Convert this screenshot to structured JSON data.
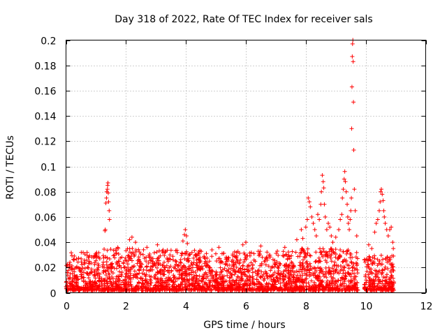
{
  "chart_data": {
    "type": "scatter",
    "title": "Day 318 of 2022, Rate Of TEC Index for receiver sals",
    "xlabel": "GPS time / hours",
    "ylabel": "ROTI / TECUs",
    "xlim": [
      0,
      12
    ],
    "ylim": [
      0,
      0.2
    ],
    "x_ticks": [
      0,
      2,
      4,
      6,
      8,
      10,
      12
    ],
    "y_ticks": [
      0,
      0.02,
      0.04,
      0.06,
      0.08,
      0.1,
      0.12,
      0.14,
      0.16,
      0.18,
      0.2
    ],
    "x_tick_labels": [
      "0",
      "2",
      "4",
      "6",
      "8",
      "10",
      "12"
    ],
    "y_tick_labels": [
      "0",
      "0.02",
      "0.04",
      "0.06",
      "0.08",
      "0.1",
      "0.12",
      "0.14",
      "0.16",
      "0.18",
      "0.2"
    ],
    "grid": true,
    "marker": "+",
    "color": "#ff0000",
    "series": [
      {
        "name": "ROTI",
        "points": [
          [
            1.3,
            0.049
          ],
          [
            1.31,
            0.05
          ],
          [
            1.33,
            0.071
          ],
          [
            1.35,
            0.075
          ],
          [
            1.36,
            0.08
          ],
          [
            1.38,
            0.082
          ],
          [
            1.39,
            0.085
          ],
          [
            1.4,
            0.087
          ],
          [
            1.41,
            0.079
          ],
          [
            1.42,
            0.072
          ],
          [
            1.44,
            0.065
          ],
          [
            1.45,
            0.058
          ],
          [
            2.12,
            0.042
          ],
          [
            2.2,
            0.044
          ],
          [
            2.32,
            0.04
          ],
          [
            2.7,
            0.036
          ],
          [
            3.05,
            0.038
          ],
          [
            3.9,
            0.041
          ],
          [
            3.95,
            0.046
          ],
          [
            3.98,
            0.05
          ],
          [
            4.02,
            0.045
          ],
          [
            4.05,
            0.039
          ],
          [
            5.1,
            0.036
          ],
          [
            5.9,
            0.038
          ],
          [
            6.0,
            0.04
          ],
          [
            6.5,
            0.037
          ],
          [
            7.3,
            0.036
          ],
          [
            7.7,
            0.042
          ],
          [
            7.85,
            0.05
          ],
          [
            7.9,
            0.043
          ],
          [
            8.0,
            0.052
          ],
          [
            8.05,
            0.058
          ],
          [
            8.08,
            0.075
          ],
          [
            8.12,
            0.072
          ],
          [
            8.15,
            0.068
          ],
          [
            8.2,
            0.06
          ],
          [
            8.25,
            0.055
          ],
          [
            8.3,
            0.05
          ],
          [
            8.35,
            0.045
          ],
          [
            8.4,
            0.062
          ],
          [
            8.45,
            0.058
          ],
          [
            8.5,
            0.07
          ],
          [
            8.52,
            0.08
          ],
          [
            8.55,
            0.093
          ],
          [
            8.58,
            0.088
          ],
          [
            8.6,
            0.083
          ],
          [
            8.62,
            0.07
          ],
          [
            8.65,
            0.06
          ],
          [
            8.7,
            0.05
          ],
          [
            8.75,
            0.055
          ],
          [
            8.8,
            0.052
          ],
          [
            8.85,
            0.045
          ],
          [
            8.9,
            0.04
          ],
          [
            9.0,
            0.044
          ],
          [
            9.1,
            0.05
          ],
          [
            9.15,
            0.058
          ],
          [
            9.2,
            0.062
          ],
          [
            9.22,
            0.075
          ],
          [
            9.25,
            0.082
          ],
          [
            9.28,
            0.09
          ],
          [
            9.3,
            0.096
          ],
          [
            9.32,
            0.088
          ],
          [
            9.35,
            0.08
          ],
          [
            9.38,
            0.07
          ],
          [
            9.4,
            0.06
          ],
          [
            9.42,
            0.055
          ],
          [
            9.45,
            0.05
          ],
          [
            9.48,
            0.058
          ],
          [
            9.5,
            0.065
          ],
          [
            9.52,
            0.075
          ],
          [
            9.53,
            0.13
          ],
          [
            9.54,
            0.163
          ],
          [
            9.55,
            0.187
          ],
          [
            9.56,
            0.197
          ],
          [
            9.57,
            0.2
          ],
          [
            9.58,
            0.183
          ],
          [
            9.59,
            0.151
          ],
          [
            9.6,
            0.113
          ],
          [
            9.62,
            0.082
          ],
          [
            9.65,
            0.065
          ],
          [
            9.7,
            0.045
          ],
          [
            10.1,
            0.038
          ],
          [
            10.2,
            0.035
          ],
          [
            10.3,
            0.048
          ],
          [
            10.35,
            0.055
          ],
          [
            10.4,
            0.058
          ],
          [
            10.45,
            0.065
          ],
          [
            10.48,
            0.072
          ],
          [
            10.5,
            0.08
          ],
          [
            10.52,
            0.082
          ],
          [
            10.55,
            0.078
          ],
          [
            10.58,
            0.073
          ],
          [
            10.6,
            0.065
          ],
          [
            10.62,
            0.06
          ],
          [
            10.65,
            0.055
          ],
          [
            10.7,
            0.05
          ],
          [
            10.75,
            0.045
          ],
          [
            10.8,
            0.05
          ],
          [
            10.85,
            0.052
          ],
          [
            10.9,
            0.04
          ],
          [
            10.92,
            0.035
          ]
        ],
        "dense_band": {
          "segments": [
            {
              "x_start": 0.0,
              "x_end": 1.25,
              "y_min": 0.002,
              "y_max": 0.032
            },
            {
              "x_start": 1.25,
              "x_end": 2.9,
              "y_min": 0.002,
              "y_max": 0.036
            },
            {
              "x_start": 2.9,
              "x_end": 5.0,
              "y_min": 0.002,
              "y_max": 0.034
            },
            {
              "x_start": 5.0,
              "x_end": 7.8,
              "y_min": 0.002,
              "y_max": 0.033
            },
            {
              "x_start": 7.8,
              "x_end": 9.75,
              "y_min": 0.002,
              "y_max": 0.035
            },
            {
              "x_start": 9.95,
              "x_end": 10.95,
              "y_min": 0.002,
              "y_max": 0.03
            }
          ],
          "n_points": 2600,
          "median": 0.011
        }
      }
    ]
  }
}
